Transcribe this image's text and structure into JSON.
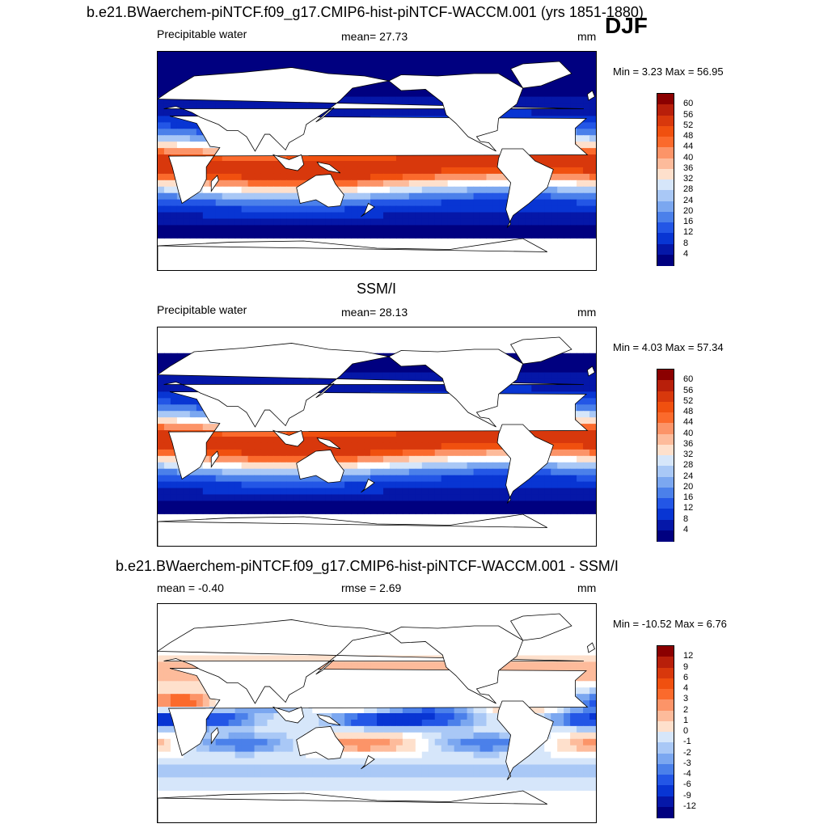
{
  "header": {
    "title": "b.e21.BWaerchem-piNTCF.f09_g17.CMIP6-hist-piNTCF-WACCM.001 (yrs 1851-1880)",
    "season": "DJF"
  },
  "panels": [
    {
      "id": "model",
      "title": "",
      "variable": "Precipitable water",
      "stat": "mean=  27.73",
      "units": "mm",
      "minmax": "Min =   3.23 Max =  56.95",
      "colorbar": {
        "labels": [
          "60",
          "56",
          "52",
          "48",
          "44",
          "40",
          "36",
          "32",
          "28",
          "24",
          "20",
          "16",
          "12",
          "8",
          "4"
        ],
        "colors": [
          "#8b0000",
          "#b81f0a",
          "#d8380c",
          "#f0500f",
          "#fb6a2c",
          "#fc9468",
          "#fdbb9b",
          "#fee0cc",
          "#ffffff",
          "#d6e6fa",
          "#a9c8f6",
          "#7ba7f0",
          "#4b80ea",
          "#2356e6",
          "#0835d3",
          "#0517a8",
          "#000080"
        ]
      },
      "field": {
        "max": 56.95,
        "min": 3.23,
        "masked": false
      }
    },
    {
      "id": "obs",
      "title": "SSM/I",
      "variable": "Precipitable water",
      "stat": "mean=  28.13",
      "units": "mm",
      "minmax": "Min =   4.03 Max =  57.34",
      "colorbar": {
        "labels": [
          "60",
          "56",
          "52",
          "48",
          "44",
          "40",
          "36",
          "32",
          "28",
          "24",
          "20",
          "16",
          "12",
          "8",
          "4"
        ],
        "colors": [
          "#8b0000",
          "#b81f0a",
          "#d8380c",
          "#f0500f",
          "#fb6a2c",
          "#fc9468",
          "#fdbb9b",
          "#fee0cc",
          "#ffffff",
          "#d6e6fa",
          "#a9c8f6",
          "#7ba7f0",
          "#4b80ea",
          "#2356e6",
          "#0835d3",
          "#0517a8",
          "#000080"
        ]
      },
      "field": {
        "max": 57.34,
        "min": 4.03,
        "masked": true
      }
    },
    {
      "id": "diff",
      "title": "b.e21.BWaerchem-piNTCF.f09_g17.CMIP6-hist-piNTCF-WACCM.001 - SSM/I",
      "variable": "",
      "stat_left": "mean =  -0.40",
      "stat": "rmse =   2.69",
      "units": "mm",
      "minmax": "Min = -10.52 Max =   6.76",
      "colorbar": {
        "labels": [
          "12",
          "9",
          "6",
          "4",
          "3",
          "2",
          "1",
          "0",
          "-1",
          "-2",
          "-3",
          "-4",
          "-6",
          "-9",
          "-12"
        ],
        "colors": [
          "#8b0000",
          "#b81f0a",
          "#d8380c",
          "#f0500f",
          "#fb6a2c",
          "#fc9468",
          "#fdbb9b",
          "#fee0cc",
          "#ffffff",
          "#d6e6fa",
          "#a9c8f6",
          "#7ba7f0",
          "#4b80ea",
          "#2356e6",
          "#0835d3",
          "#0517a8",
          "#000080"
        ]
      },
      "field": {
        "max": 6.76,
        "min": -10.52,
        "masked": true
      }
    }
  ]
}
